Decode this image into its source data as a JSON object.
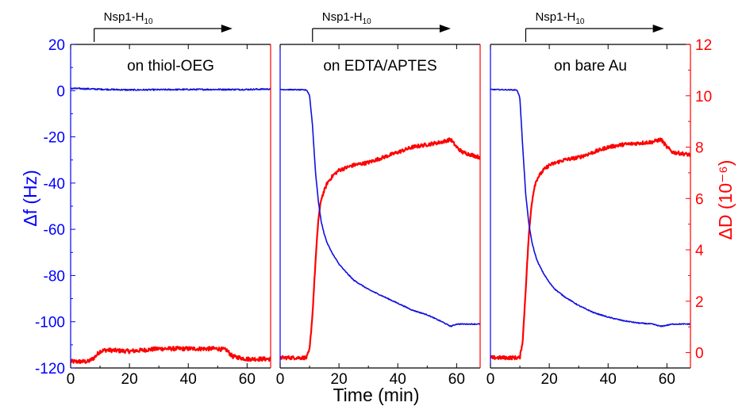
{
  "chart_data": {
    "type": "line",
    "xlabel": "Time (min)",
    "ylabel_left": "Δf (Hz)",
    "ylabel_right": "ΔD (10⁻⁶)",
    "x_ticks": [
      "0",
      "20",
      "40",
      "60"
    ],
    "xlim": [
      0,
      68
    ],
    "y_left_ticks": [
      "20",
      "0",
      "-20",
      "-40",
      "-60",
      "-80",
      "-100",
      "-120"
    ],
    "y_left_lim": [
      -120,
      20
    ],
    "y_right_ticks": [
      "12",
      "10",
      "8",
      "6",
      "4",
      "2",
      "0"
    ],
    "y_right_lim": [
      -0.6,
      12
    ],
    "colors": {
      "frequency": "#1010e0",
      "dissipation": "#ff0000",
      "left_axis": "#0000ff",
      "right_axis": "#ff0000"
    },
    "annotation": {
      "text": "Nsp1-H",
      "subscript": "10"
    },
    "panels": [
      {
        "label": "on thiol-OEG",
        "annotation_start_x": 8,
        "annotation_end_x": 55,
        "series": [
          {
            "axis": "left",
            "color": "#1010e0",
            "noise": 0.3,
            "x": [
              0,
              10,
              20,
              30,
              40,
              50,
              60,
              68
            ],
            "y": [
              1,
              0.6,
              0.3,
              0.4,
              0.5,
              0.5,
              0.5,
              0.7
            ]
          },
          {
            "axis": "right",
            "color": "#ff0000",
            "noise": 0.08,
            "x": [
              0,
              6,
              8,
              10,
              12,
              20,
              30,
              40,
              50,
              53,
              55,
              60,
              68
            ],
            "y": [
              -0.35,
              -0.35,
              -0.2,
              0.05,
              0.1,
              0.05,
              0.15,
              0.15,
              0.15,
              0.1,
              -0.15,
              -0.25,
              -0.25
            ]
          }
        ]
      },
      {
        "label": "on EDTA/APTES",
        "annotation_start_x": 11,
        "annotation_end_x": 58,
        "series": [
          {
            "axis": "left",
            "color": "#1010e0",
            "noise": 0.2,
            "x": [
              0,
              9,
              10,
              11,
              12,
              13,
              14,
              15,
              16,
              18,
              20,
              22,
              25,
              30,
              35,
              40,
              45,
              50,
              55,
              58,
              60,
              62,
              68
            ],
            "y": [
              0.5,
              0.3,
              -2,
              -15,
              -35,
              -48,
              -57,
              -62,
              -66,
              -71,
              -75,
              -78,
              -82,
              -86,
              -89,
              -92,
              -95,
              -97,
              -100,
              -102,
              -101,
              -101,
              -101
            ]
          },
          {
            "axis": "right",
            "color": "#ff0000",
            "noise": 0.07,
            "x": [
              0,
              9,
              10,
              11,
              12,
              13,
              14,
              16,
              18,
              20,
              25,
              30,
              35,
              40,
              45,
              50,
              55,
              58,
              60,
              62,
              65,
              68
            ],
            "y": [
              -0.2,
              -0.2,
              0.1,
              1.5,
              3.5,
              5.2,
              6.0,
              6.6,
              6.9,
              7.1,
              7.3,
              7.4,
              7.6,
              7.8,
              8.0,
              8.1,
              8.2,
              8.3,
              8.0,
              7.8,
              7.7,
              7.6
            ]
          }
        ]
      },
      {
        "label": "on bare Au",
        "annotation_start_x": 12,
        "annotation_end_x": 59,
        "series": [
          {
            "axis": "left",
            "color": "#1010e0",
            "noise": 0.2,
            "x": [
              0,
              9,
              10,
              11,
              12,
              13,
              14,
              15,
              16,
              18,
              20,
              22,
              25,
              30,
              35,
              40,
              45,
              50,
              55,
              58,
              60,
              62,
              68
            ],
            "y": [
              0.5,
              0.3,
              -3,
              -25,
              -45,
              -57,
              -65,
              -70,
              -74,
              -79,
              -83,
              -86,
              -89,
              -93,
              -96,
              -98,
              -99.5,
              -100.5,
              -101,
              -102,
              -101.5,
              -101,
              -101
            ]
          },
          {
            "axis": "right",
            "color": "#ff0000",
            "noise": 0.07,
            "x": [
              0,
              10,
              11,
              12,
              13,
              14,
              15,
              16,
              18,
              20,
              25,
              30,
              35,
              40,
              45,
              50,
              55,
              58,
              60,
              62,
              65,
              68
            ],
            "y": [
              -0.2,
              -0.2,
              0.5,
              2.5,
              4.5,
              5.8,
              6.5,
              6.8,
              7.1,
              7.3,
              7.5,
              7.6,
              7.8,
              8.0,
              8.1,
              8.15,
              8.2,
              8.3,
              8.0,
              7.8,
              7.75,
              7.7
            ]
          }
        ]
      }
    ]
  }
}
